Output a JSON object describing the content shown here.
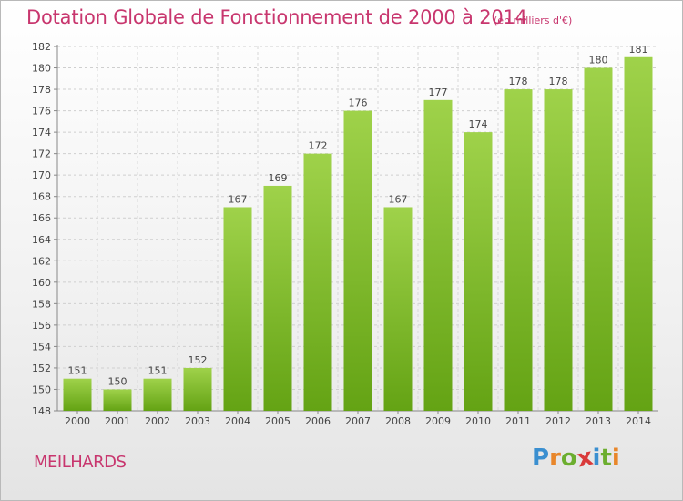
{
  "title": "Dotation Globale de Fonctionnement de 2000 à 2014",
  "subtitle": "(en milliers d'€)",
  "commune": "MEILHARDS",
  "logo": {
    "letters": [
      "P",
      "r",
      "o",
      "x",
      "i",
      "t",
      "i"
    ],
    "colors": [
      "#3a8fd0",
      "#e8862a",
      "#6cae2f",
      "#d93a3a",
      "#3a8fd0",
      "#6cae2f",
      "#e8862a"
    ]
  },
  "chart_data": {
    "type": "bar",
    "categories": [
      "2000",
      "2001",
      "2002",
      "2003",
      "2004",
      "2005",
      "2006",
      "2007",
      "2008",
      "2009",
      "2010",
      "2011",
      "2012",
      "2013",
      "2014"
    ],
    "values": [
      151,
      150,
      151,
      152,
      167,
      169,
      172,
      176,
      167,
      177,
      174,
      178,
      178,
      180,
      181
    ],
    "title": "Dotation Globale de Fonctionnement de 2000 à 2014",
    "subtitle": "(en milliers d'€)",
    "ylim": [
      148,
      182
    ],
    "yticks": [
      148,
      150,
      152,
      154,
      156,
      158,
      160,
      162,
      164,
      166,
      168,
      170,
      172,
      174,
      176,
      178,
      180,
      182
    ],
    "grid": true,
    "bar_color": "#7fbf2f"
  }
}
